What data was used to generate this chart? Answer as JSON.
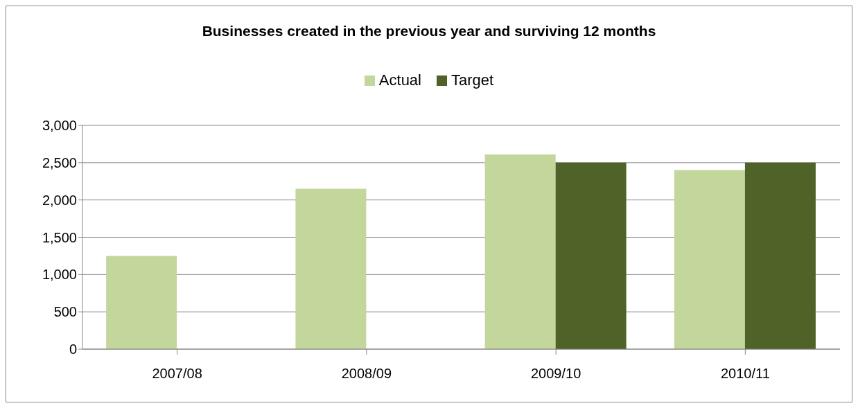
{
  "chart_data": {
    "type": "bar",
    "title": "Businesses created in the previous year and surviving 12 months",
    "categories": [
      "2007/08",
      "2008/09",
      "2009/10",
      "2010/11"
    ],
    "series": [
      {
        "name": "Actual",
        "color": "#c3d69b",
        "values": [
          1250,
          2150,
          2610,
          2400
        ]
      },
      {
        "name": "Target",
        "color": "#4f6228",
        "values": [
          null,
          null,
          2500,
          2500
        ]
      }
    ],
    "ylim": [
      0,
      3000
    ],
    "yticks": [
      0,
      500,
      {
        "value": 1000,
        "label": "1,000"
      },
      {
        "value": 1500,
        "label": "1,500"
      },
      {
        "value": 2000,
        "label": "2,000"
      },
      {
        "value": 2500,
        "label": "2,500"
      },
      {
        "value": 3000,
        "label": "3,000"
      }
    ],
    "grid": "y",
    "legend": "top"
  }
}
